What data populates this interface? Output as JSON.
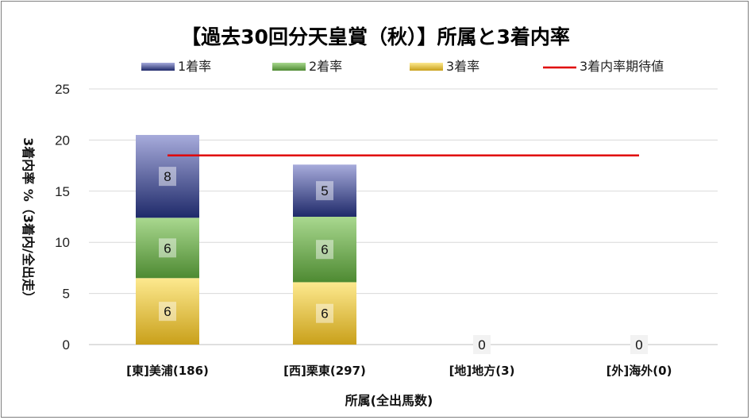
{
  "chart_data": {
    "type": "bar",
    "stacked": true,
    "title": "【過去30回分天皇賞（秋）】所属と3着内率",
    "xlabel": "所属(全出馬数)",
    "ylabel": "3着内率 %（3着内/全出走）",
    "ylim": [
      0,
      25
    ],
    "yticks": [
      0,
      5,
      10,
      15,
      20,
      25
    ],
    "grid": true,
    "legend_position": "top",
    "categories": [
      "[東]美浦(186)",
      "[西]栗東(297)",
      "[地]地方(3)",
      "[外]海外(0)"
    ],
    "series": [
      {
        "name": "3着率",
        "values": [
          6.5,
          6.1,
          0,
          0
        ],
        "labels": [
          "6",
          "6",
          "",
          ""
        ],
        "color_top": "#fde98f",
        "color_bottom": "#c9a01a"
      },
      {
        "name": "2着率",
        "values": [
          5.9,
          6.4,
          0,
          0
        ],
        "labels": [
          "6",
          "6",
          "",
          ""
        ],
        "color_top": "#a9d88f",
        "color_bottom": "#4e8a32"
      },
      {
        "name": "1着率",
        "values": [
          8.1,
          5.1,
          0,
          0
        ],
        "labels": [
          "8",
          "5",
          "",
          ""
        ],
        "color_top": "#a7abdb",
        "color_bottom": "#1f2a6a"
      }
    ],
    "total_labels": [
      "",
      "",
      "0",
      "0"
    ],
    "reference_line": {
      "name": "3着内率期待値",
      "value": 18.5,
      "color": "#e00000"
    }
  }
}
